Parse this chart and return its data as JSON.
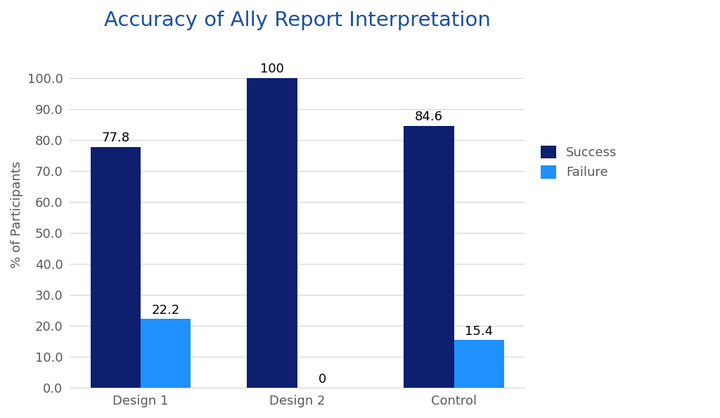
{
  "title": "Accuracy of Ally Report Interpretation",
  "categories": [
    "Design 1",
    "Design 2",
    "Control"
  ],
  "success_values": [
    77.8,
    100,
    84.6
  ],
  "failure_values": [
    22.2,
    0,
    15.4
  ],
  "success_labels": [
    "77.8",
    "100",
    "84.6"
  ],
  "failure_labels": [
    "22.2",
    "0",
    "15.4"
  ],
  "success_color": "#0D1F6E",
  "failure_color": "#1E90FF",
  "ylabel": "% of Participants",
  "ylim": [
    0,
    112
  ],
  "yticks": [
    0.0,
    10.0,
    20.0,
    30.0,
    40.0,
    50.0,
    60.0,
    70.0,
    80.0,
    90.0,
    100.0
  ],
  "bar_width": 0.32,
  "legend_labels": [
    "Success",
    "Failure"
  ],
  "background_color": "#ffffff",
  "title_color": "#1a4fa0",
  "title_fontsize": 21,
  "axis_fontsize": 13,
  "tick_fontsize": 13,
  "label_fontsize": 13,
  "tick_color": "#595959",
  "grid_color": "#d9d9d9"
}
